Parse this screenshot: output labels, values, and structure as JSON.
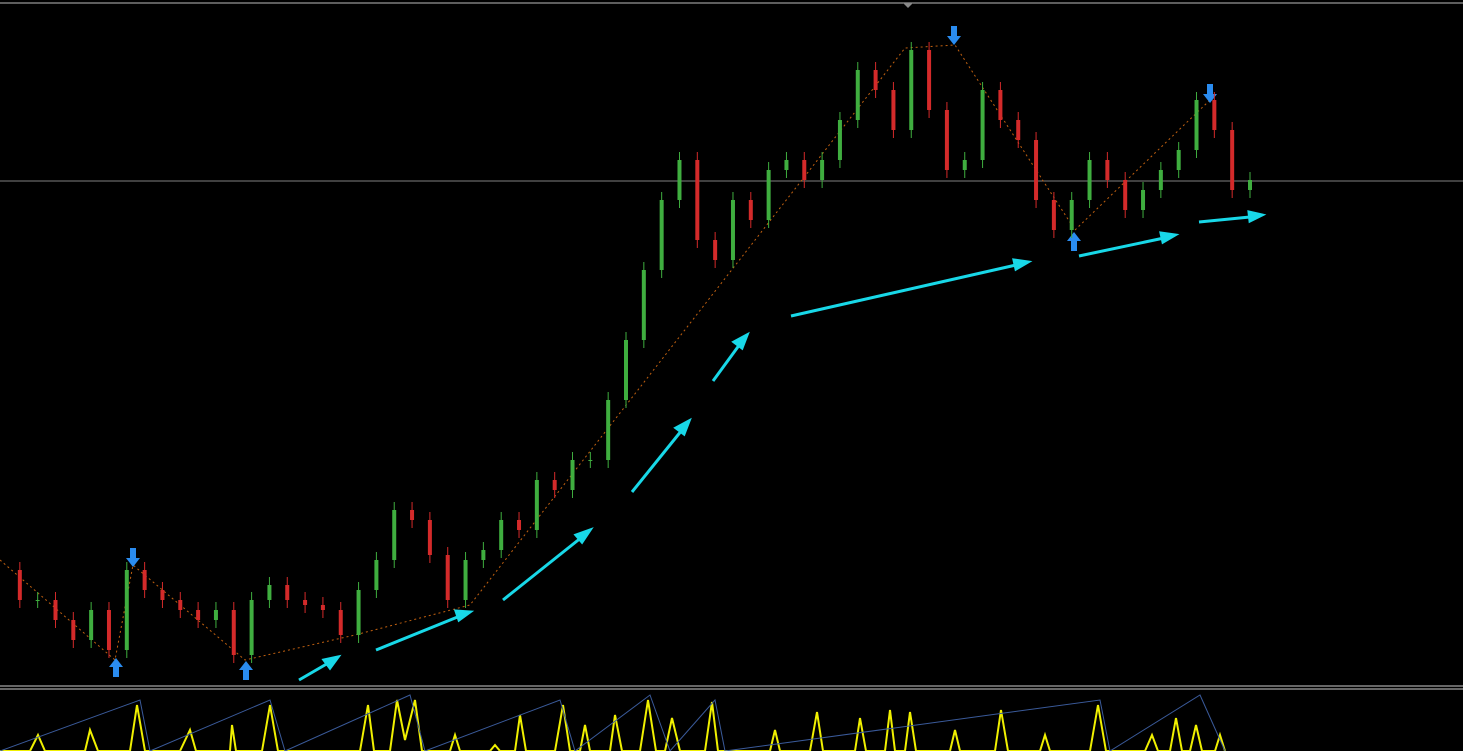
{
  "chart_data": {
    "type": "candlestick",
    "values": [
      116,
      86,
      86,
      66,
      46,
      76,
      36,
      116,
      96,
      86,
      76,
      66,
      76,
      31,
      86,
      101,
      86,
      81,
      76,
      51,
      96,
      126,
      176,
      166,
      131,
      86,
      126,
      136,
      166,
      156,
      206,
      196,
      226,
      226,
      286,
      346,
      416,
      486,
      526,
      446,
      426,
      486,
      466,
      516,
      526,
      506,
      526,
      566,
      616,
      596,
      556,
      636,
      576,
      516,
      526,
      596,
      566,
      546,
      486,
      456,
      486,
      526,
      506,
      476,
      496,
      516,
      536,
      586,
      556,
      496,
      506
    ],
    "ylim": [
      0,
      686
    ],
    "up_color": "#3fae3f",
    "down_color": "#d42a2a"
  }
}
